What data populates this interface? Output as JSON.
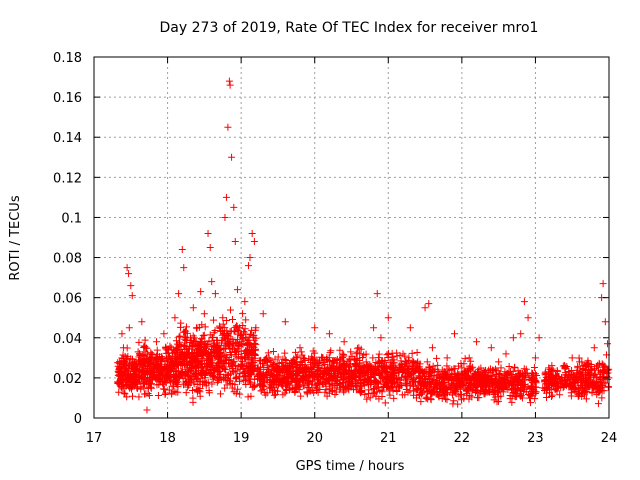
{
  "chart_data": {
    "type": "scatter",
    "title": "Day 273 of 2019, Rate Of TEC Index for receiver mro1",
    "xlabel": "GPS time / hours",
    "ylabel": "ROTI / TECUs",
    "xlim": [
      17,
      24
    ],
    "ylim": [
      0,
      0.18
    ],
    "xticks": [
      "17",
      "18",
      "19",
      "20",
      "21",
      "22",
      "23",
      "24"
    ],
    "yticks": [
      "0",
      "0.02",
      "0.04",
      "0.06",
      "0.08",
      "0.1",
      "0.12",
      "0.14",
      "0.16",
      "0.18"
    ],
    "grid": true,
    "marker": "+",
    "color": "#ff0000",
    "series": [
      {
        "name": "ROTI",
        "points": [
          [
            17.32,
            0.018
          ],
          [
            17.35,
            0.025
          ],
          [
            17.38,
            0.042
          ],
          [
            17.4,
            0.035
          ],
          [
            17.42,
            0.012
          ],
          [
            17.45,
            0.075
          ],
          [
            17.47,
            0.072
          ],
          [
            17.5,
            0.066
          ],
          [
            17.52,
            0.061
          ],
          [
            17.48,
            0.045
          ],
          [
            17.55,
            0.028
          ],
          [
            17.58,
            0.02
          ],
          [
            17.6,
            0.033
          ],
          [
            17.65,
            0.048
          ],
          [
            17.68,
            0.015
          ],
          [
            17.72,
            0.004
          ],
          [
            17.75,
            0.03
          ],
          [
            17.8,
            0.022
          ],
          [
            17.85,
            0.038
          ],
          [
            17.9,
            0.018
          ],
          [
            17.95,
            0.042
          ],
          [
            18.0,
            0.028
          ],
          [
            18.05,
            0.035
          ],
          [
            18.1,
            0.05
          ],
          [
            18.15,
            0.062
          ],
          [
            18.2,
            0.084
          ],
          [
            18.22,
            0.075
          ],
          [
            18.25,
            0.04
          ],
          [
            18.3,
            0.025
          ],
          [
            18.35,
            0.055
          ],
          [
            18.4,
            0.045
          ],
          [
            18.45,
            0.063
          ],
          [
            18.5,
            0.052
          ],
          [
            18.55,
            0.092
          ],
          [
            18.58,
            0.085
          ],
          [
            18.6,
            0.068
          ],
          [
            18.65,
            0.062
          ],
          [
            18.7,
            0.03
          ],
          [
            18.72,
            0.012
          ],
          [
            18.75,
            0.05
          ],
          [
            18.78,
            0.1
          ],
          [
            18.8,
            0.11
          ],
          [
            18.82,
            0.145
          ],
          [
            18.84,
            0.168
          ],
          [
            18.85,
            0.166
          ],
          [
            18.87,
            0.13
          ],
          [
            18.9,
            0.105
          ],
          [
            18.92,
            0.088
          ],
          [
            18.95,
            0.064
          ],
          [
            18.98,
            0.045
          ],
          [
            19.0,
            0.038
          ],
          [
            19.05,
            0.058
          ],
          [
            19.1,
            0.076
          ],
          [
            19.12,
            0.08
          ],
          [
            19.15,
            0.092
          ],
          [
            19.18,
            0.088
          ],
          [
            19.2,
            0.045
          ],
          [
            19.25,
            0.022
          ],
          [
            19.3,
            0.052
          ],
          [
            19.35,
            0.03
          ],
          [
            19.4,
            0.015
          ],
          [
            19.5,
            0.025
          ],
          [
            19.6,
            0.048
          ],
          [
            19.7,
            0.02
          ],
          [
            19.8,
            0.035
          ],
          [
            19.9,
            0.012
          ],
          [
            20.0,
            0.045
          ],
          [
            20.1,
            0.03
          ],
          [
            20.2,
            0.042
          ],
          [
            20.3,
            0.025
          ],
          [
            20.4,
            0.038
          ],
          [
            20.5,
            0.02
          ],
          [
            20.6,
            0.035
          ],
          [
            20.7,
            0.028
          ],
          [
            20.8,
            0.045
          ],
          [
            20.85,
            0.062
          ],
          [
            20.9,
            0.04
          ],
          [
            21.0,
            0.05
          ],
          [
            21.1,
            0.025
          ],
          [
            21.2,
            0.032
          ],
          [
            21.3,
            0.045
          ],
          [
            21.4,
            0.028
          ],
          [
            21.5,
            0.055
          ],
          [
            21.55,
            0.057
          ],
          [
            21.6,
            0.035
          ],
          [
            21.7,
            0.02
          ],
          [
            21.8,
            0.03
          ],
          [
            21.9,
            0.042
          ],
          [
            22.0,
            0.025
          ],
          [
            22.1,
            0.03
          ],
          [
            22.2,
            0.038
          ],
          [
            22.3,
            0.022
          ],
          [
            22.4,
            0.035
          ],
          [
            22.5,
            0.028
          ],
          [
            22.6,
            0.032
          ],
          [
            22.7,
            0.04
          ],
          [
            22.8,
            0.042
          ],
          [
            22.85,
            0.058
          ],
          [
            22.9,
            0.05
          ],
          [
            23.0,
            0.03
          ],
          [
            23.05,
            0.04
          ],
          [
            23.1,
            0.015
          ],
          [
            23.2,
            0.022
          ],
          [
            23.3,
            0.018
          ],
          [
            23.4,
            0.025
          ],
          [
            23.5,
            0.03
          ],
          [
            23.6,
            0.028
          ],
          [
            23.7,
            0.02
          ],
          [
            23.8,
            0.035
          ],
          [
            23.9,
            0.06
          ],
          [
            23.92,
            0.067
          ],
          [
            23.95,
            0.048
          ],
          [
            23.98,
            0.037
          ],
          [
            24.0,
            0.02
          ]
        ],
        "density": [
          {
            "x": [
              17.32,
              17.6
            ],
            "y": [
              0.008,
              0.032
            ],
            "n": 170
          },
          {
            "x": [
              17.6,
              18.15
            ],
            "y": [
              0.008,
              0.038
            ],
            "n": 330
          },
          {
            "x": [
              18.15,
              18.7
            ],
            "y": [
              0.006,
              0.045
            ],
            "n": 380
          },
          {
            "x": [
              18.7,
              19.2
            ],
            "y": [
              0.006,
              0.05
            ],
            "n": 300
          },
          {
            "x": [
              19.22,
              19.8
            ],
            "y": [
              0.008,
              0.032
            ],
            "n": 280
          },
          {
            "x": [
              19.8,
              20.6
            ],
            "y": [
              0.007,
              0.034
            ],
            "n": 380
          },
          {
            "x": [
              20.6,
              21.4
            ],
            "y": [
              0.006,
              0.032
            ],
            "n": 360
          },
          {
            "x": [
              21.4,
              22.2
            ],
            "y": [
              0.005,
              0.028
            ],
            "n": 360
          },
          {
            "x": [
              22.2,
              23.02
            ],
            "y": [
              0.006,
              0.026
            ],
            "n": 360
          },
          {
            "x": [
              23.12,
              23.55
            ],
            "y": [
              0.008,
              0.026
            ],
            "n": 160
          },
          {
            "x": [
              23.55,
              24.0
            ],
            "y": [
              0.006,
              0.03
            ],
            "n": 190
          }
        ]
      }
    ]
  }
}
